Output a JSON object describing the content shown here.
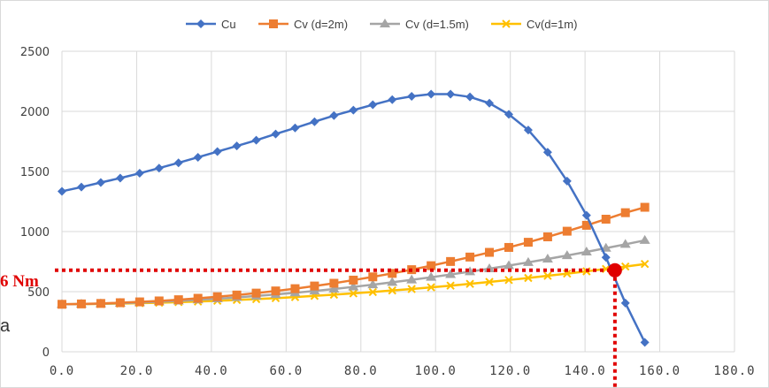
{
  "chart_data": {
    "type": "line",
    "title": "",
    "xlabel": "",
    "ylabel": "",
    "xlim": [
      0,
      180
    ],
    "ylim": [
      0,
      2500
    ],
    "x_ticks": [
      "0.0",
      "20.0",
      "40.0",
      "60.0",
      "80.0",
      "100.0",
      "120.0",
      "140.0",
      "160.0",
      "180.0"
    ],
    "y_ticks": [
      "0",
      "500",
      "1000",
      "1500",
      "2000",
      "2500"
    ],
    "grid": true,
    "legend_position": "top",
    "series": [
      {
        "name": "Cu",
        "color": "#4472c4",
        "marker": "diamond",
        "x": [
          0,
          5.2,
          10.4,
          15.6,
          20.8,
          26,
          31.2,
          36.4,
          41.6,
          46.8,
          52,
          57.2,
          62.4,
          67.6,
          72.8,
          78,
          83.2,
          88.4,
          93.6,
          98.8,
          104,
          109.2,
          114.4,
          119.6,
          124.8,
          130,
          135.2,
          140.4,
          145.6,
          150.8,
          156
        ],
        "values": [
          1335,
          1370,
          1408,
          1445,
          1485,
          1528,
          1572,
          1618,
          1665,
          1712,
          1760,
          1812,
          1862,
          1914,
          1965,
          2010,
          2055,
          2097,
          2125,
          2143,
          2143,
          2120,
          2068,
          1975,
          1845,
          1660,
          1420,
          1135,
          785,
          405,
          78
        ]
      },
      {
        "name": "Cv (d=2m)",
        "color": "#ed7d31",
        "marker": "square",
        "x": [
          0,
          5.2,
          10.4,
          15.6,
          20.8,
          26,
          31.2,
          36.4,
          41.6,
          46.8,
          52,
          57.2,
          62.4,
          67.6,
          72.8,
          78,
          83.2,
          88.4,
          93.6,
          98.8,
          104,
          109.2,
          114.4,
          119.6,
          124.8,
          130,
          135.2,
          140.4,
          145.6,
          150.8,
          156
        ],
        "values": [
          395,
          398,
          402,
          408,
          415,
          423,
          433,
          445,
          458,
          472,
          488,
          506,
          525,
          547,
          570,
          596,
          623,
          652,
          683,
          716,
          751,
          788,
          827,
          868,
          911,
          956,
          1003,
          1052,
          1103,
          1157,
          1202
        ]
      },
      {
        "name": "Cv (d=1.5m)",
        "color": "#a5a5a5",
        "marker": "triangle",
        "x": [
          0,
          5.2,
          10.4,
          15.6,
          20.8,
          26,
          31.2,
          36.4,
          41.6,
          46.8,
          52,
          57.2,
          62.4,
          67.6,
          72.8,
          78,
          83.2,
          88.4,
          93.6,
          98.8,
          104,
          109.2,
          114.4,
          119.6,
          124.8,
          130,
          135.2,
          140.4,
          145.6,
          150.8,
          156
        ],
        "values": [
          395,
          397,
          400,
          404,
          409,
          416,
          423,
          432,
          441,
          452,
          464,
          477,
          491,
          506,
          522,
          540,
          558,
          578,
          598,
          620,
          643,
          666,
          691,
          717,
          744,
          772,
          801,
          831,
          862,
          894,
          927
        ]
      },
      {
        "name": "Cv(d=1m)",
        "color": "#ffc000",
        "marker": "x",
        "x": [
          0,
          5.2,
          10.4,
          15.6,
          20.8,
          26,
          31.2,
          36.4,
          41.6,
          46.8,
          52,
          57.2,
          62.4,
          67.6,
          72.8,
          78,
          83.2,
          88.4,
          93.6,
          98.8,
          104,
          109.2,
          114.4,
          119.6,
          124.8,
          130,
          135.2,
          140.4,
          145.6,
          150.8,
          156
        ],
        "values": [
          395,
          396,
          398,
          401,
          404,
          408,
          413,
          418,
          424,
          431,
          438,
          446,
          455,
          465,
          475,
          486,
          497,
          510,
          522,
          536,
          550,
          565,
          581,
          597,
          614,
          632,
          650,
          669,
          689,
          709,
          730
        ]
      }
    ],
    "annotation": {
      "label": "6 Nm",
      "point_x": 148,
      "point_y": 678,
      "color": "#e00000"
    },
    "stray_text": "a"
  }
}
